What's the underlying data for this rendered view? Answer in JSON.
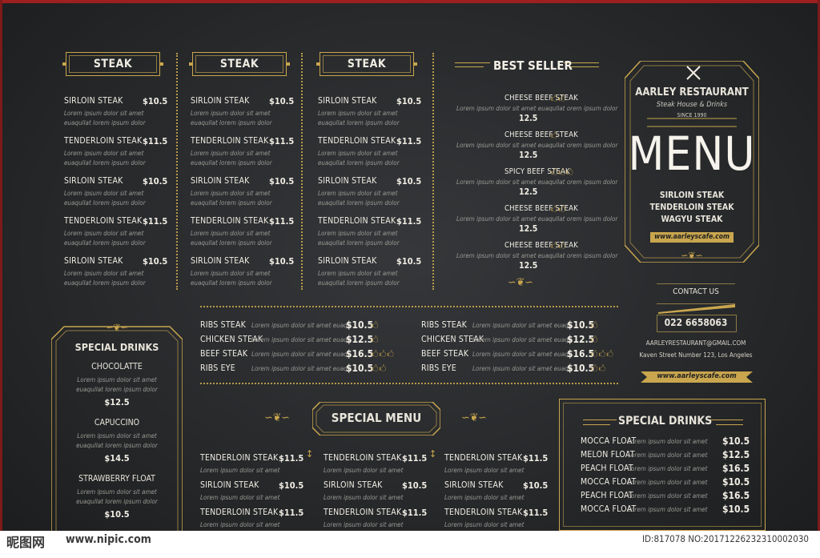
{
  "steak_columns": [
    {
      "title": "STEAK",
      "items": [
        {
          "name": "SIRLOIN STEAK",
          "price": "$10.5",
          "desc1": "Lorem ipsum dolor sit amet",
          "desc2": "euaqullat lorem ipsum dolor"
        },
        {
          "name": "TENDERLOIN STEAK",
          "price": "$11.5",
          "desc1": "Lorem ipsum dolor sit amet",
          "desc2": "euaqullat lorem ipsum dolor"
        },
        {
          "name": "SIRLOIN STEAK",
          "price": "$10.5",
          "desc1": "Lorem ipsum dolor sit amet",
          "desc2": "euaqullat lorem ipsum dolor"
        },
        {
          "name": "TENDERLOIN STEAK",
          "price": "$11.5",
          "desc1": "Lorem ipsum dolor sit amet",
          "desc2": "euaqullat lorem ipsum dolor"
        },
        {
          "name": "SIRLOIN STEAK",
          "price": "$10.5",
          "desc1": "Lorem ipsum dolor sit amet",
          "desc2": "euaqullat lorem ipsum dolor"
        }
      ]
    },
    {
      "title": "STEAK",
      "items": [
        {
          "name": "SIRLOIN STEAK",
          "price": "$10.5",
          "desc1": "Lorem ipsum dolor sit amet",
          "desc2": "euaqullat lorem ipsum dolor"
        },
        {
          "name": "TENDERLOIN STEAK",
          "price": "$11.5",
          "desc1": "Lorem ipsum dolor sit amet",
          "desc2": "euaqullat lorem ipsum dolor"
        },
        {
          "name": "SIRLOIN STEAK",
          "price": "$10.5",
          "desc1": "Lorem ipsum dolor sit amet",
          "desc2": "euaqullat lorem ipsum dolor"
        },
        {
          "name": "TENDERLOIN STEAK",
          "price": "$11.5",
          "desc1": "Lorem ipsum dolor sit amet",
          "desc2": "euaqullat lorem ipsum dolor"
        },
        {
          "name": "SIRLOIN STEAK",
          "price": "$10.5",
          "desc1": "Lorem ipsum dolor sit amet",
          "desc2": "euaqullat lorem ipsum dolor"
        }
      ]
    },
    {
      "title": "STEAK",
      "items": [
        {
          "name": "SIRLOIN STEAK",
          "price": "$10.5",
          "desc1": "Lorem ipsum dolor sit amet",
          "desc2": "euaqullat lorem ipsum dolor"
        },
        {
          "name": "TENDERLOIN STEAK",
          "price": "$11.5",
          "desc1": "Lorem ipsum dolor sit amet",
          "desc2": "euaqullat lorem ipsum dolor"
        },
        {
          "name": "SIRLOIN STEAK",
          "price": "$10.5",
          "desc1": "Lorem ipsum dolor sit amet",
          "desc2": "euaqullat lorem ipsum dolor"
        },
        {
          "name": "TENDERLOIN STEAK",
          "price": "$11.5",
          "desc1": "Lorem ipsum dolor sit amet",
          "desc2": "euaqullat lorem ipsum dolor"
        },
        {
          "name": "SIRLOIN STEAK",
          "price": "$10.5",
          "desc1": "Lorem ipsum dolor sit amet",
          "desc2": "euaqullat lorem ipsum dolor"
        }
      ]
    }
  ],
  "best_seller": {
    "title": "BEST SELLER",
    "items": [
      {
        "name": "CHEESE BEEF STEAK",
        "icons": "🖒🖒",
        "desc": "Lorem ipsum dolor sit amet euaqullat orem ipsum dolor",
        "price": "12.5"
      },
      {
        "name": "CHEESE BEEF STEAK",
        "icons": "🖒",
        "desc": "Lorem ipsum dolor sit amet euaqullat orem ipsum dolor",
        "price": "12.5"
      },
      {
        "name": "SPICY BEEF STEAK",
        "icons": "🖒🖒🖒",
        "desc": "Lorem ipsum dolor sit amet euaqullat orem ipsum dolor",
        "price": "12.5"
      },
      {
        "name": "CHEESE BEEF STEAK",
        "icons": "🖒🖒",
        "desc": "Lorem ipsum dolor sit amet euaqullat orem ipsum dolor",
        "price": "12.5"
      },
      {
        "name": "CHEESE BEEF STEAK",
        "icons": "🖒🖒",
        "desc": "Lorem ipsum dolor sit amet euaqullat orem ipsum dolor",
        "price": "12.5"
      }
    ]
  },
  "menu_card": {
    "name": "AARLEY RESTAURANT",
    "tagline": "Steak House & Drinks",
    "since": "SINCE 1990",
    "title": "MENU",
    "features": [
      "SIRLOIN STEAK",
      "TENDERLOIN STEAK",
      "WAGYU STEAK"
    ],
    "website": "www.aarleyscafe.com"
  },
  "contact": {
    "label": "CONTACT US",
    "phone": "022 6658063",
    "email": "AARLEYRESTAURANT@GMAIL.COM",
    "address": "Kaven Street Number 123, Los Angeles",
    "website": "www.aarleyscafe.com"
  },
  "middle_list": {
    "left": [
      {
        "name": "RIBS STEAK",
        "desc": "Lorem ipsum dolor sit amet euaqu",
        "price": "$10.5",
        "icons": "🖒"
      },
      {
        "name": "CHICKEN STEAK",
        "desc": "Lorem ipsum dolor sit amet euaqu",
        "price": "$12.5",
        "icons": "🖒"
      },
      {
        "name": "BEEF STEAK",
        "desc": "Lorem ipsum dolor sit amet euaqu",
        "price": "$16.5",
        "icons": "🖒🖒🖒"
      },
      {
        "name": "RIBS EYE",
        "desc": "Lorem ipsum dolor sit amet euaqu",
        "price": "$10.5",
        "icons": "🖒🖒"
      }
    ],
    "right": [
      {
        "name": "RIBS STEAK",
        "desc": "Lorem ipsum dolor sit amet euaqu",
        "price": "$10.5",
        "icons": "🖒"
      },
      {
        "name": "CHICKEN STEAK",
        "desc": "Lorem ipsum dolor sit amet euaqu",
        "price": "$12.5",
        "icons": "🖒"
      },
      {
        "name": "BEEF STEAK",
        "desc": "Lorem ipsum dolor sit amet euaqu",
        "price": "$16.5",
        "icons": "🖒🖒🖒"
      },
      {
        "name": "RIBS EYE",
        "desc": "Lorem ipsum dolor sit amet euaqu",
        "price": "$10.5",
        "icons": "🖒🖒"
      }
    ]
  },
  "special_drinks_left": {
    "title": "SPECIAL DRINKS",
    "items": [
      {
        "name": "CHOCOLATTE",
        "desc1": "Lorem ipsum dolor sit amet",
        "desc2": "euaqullat lorem ipsum dolor",
        "price": "$12.5"
      },
      {
        "name": "CAPUCCINO",
        "desc1": "Lorem ipsum dolor sit amet",
        "desc2": "euaqullat lorem ipsum dolor",
        "price": "$14.5"
      },
      {
        "name": "STRAWBERRY FLOAT",
        "desc1": "Lorem ipsum dolor sit amet",
        "desc2": "euaqullat lorem ipsum dolor",
        "price": "$10.5"
      }
    ]
  },
  "special_menu": {
    "title": "SPECIAL MENU",
    "columns": [
      [
        {
          "name": "TENDERLOIN STEAK",
          "price": "$11.5",
          "desc": "Lorem ipsum dolor sit amet"
        },
        {
          "name": "SIRLOIN STEAK",
          "price": "$10.5",
          "desc": "Lorem ipsum dolor sit amet"
        },
        {
          "name": "TENDERLOIN STEAK",
          "price": "$11.5",
          "desc": "Lorem ipsum dolor sit amet"
        }
      ],
      [
        {
          "name": "TENDERLOIN STEAK",
          "price": "$11.5",
          "desc": "Lorem ipsum dolor sit amet"
        },
        {
          "name": "SIRLOIN STEAK",
          "price": "$10.5",
          "desc": "Lorem ipsum dolor sit amet"
        },
        {
          "name": "TENDERLOIN STEAK",
          "price": "$11.5",
          "desc": "Lorem ipsum dolor sit amet"
        }
      ],
      [
        {
          "name": "TENDERLOIN STEAK",
          "price": "$11.5",
          "desc": "Lorem ipsum dolor sit amet"
        },
        {
          "name": "SIRLOIN STEAK",
          "price": "$10.5",
          "desc": "Lorem ipsum dolor sit amet"
        },
        {
          "name": "TENDERLOIN STEAK",
          "price": "$11.5",
          "desc": "Lorem ipsum dolor sit amet"
        }
      ]
    ]
  },
  "special_drinks_right": {
    "title": "SPECIAL DRINKS",
    "items": [
      {
        "name": "MOCCA FLOAT",
        "desc": "Lorem ipsum dolor sit amet",
        "price": "$10.5"
      },
      {
        "name": "MELON FLOAT",
        "desc": "Lorem ipsum dolor sit amet",
        "price": "$12.5"
      },
      {
        "name": "PEACH FLOAT",
        "desc": "Lorem ipsum dolor sit amet",
        "price": "$16.5"
      },
      {
        "name": "MOCCA FLOAT",
        "desc": "Lorem ipsum dolor sit amet",
        "price": "$10.5"
      },
      {
        "name": "PEACH FLOAT",
        "desc": "Lorem ipsum dolor sit amet",
        "price": "$16.5"
      },
      {
        "name": "MOCCA FLOAT",
        "desc": "Lorem ipsum dolor sit amet",
        "price": "$10.5"
      }
    ]
  },
  "watermark": {
    "site_cn": "昵图网",
    "url": "www.nipic.com",
    "id": "ID:817078 NO:20171226232310002030"
  },
  "colors": {
    "gold": "#c9a64e",
    "board": "#27292b",
    "accent_red": "#9d1f1f"
  }
}
